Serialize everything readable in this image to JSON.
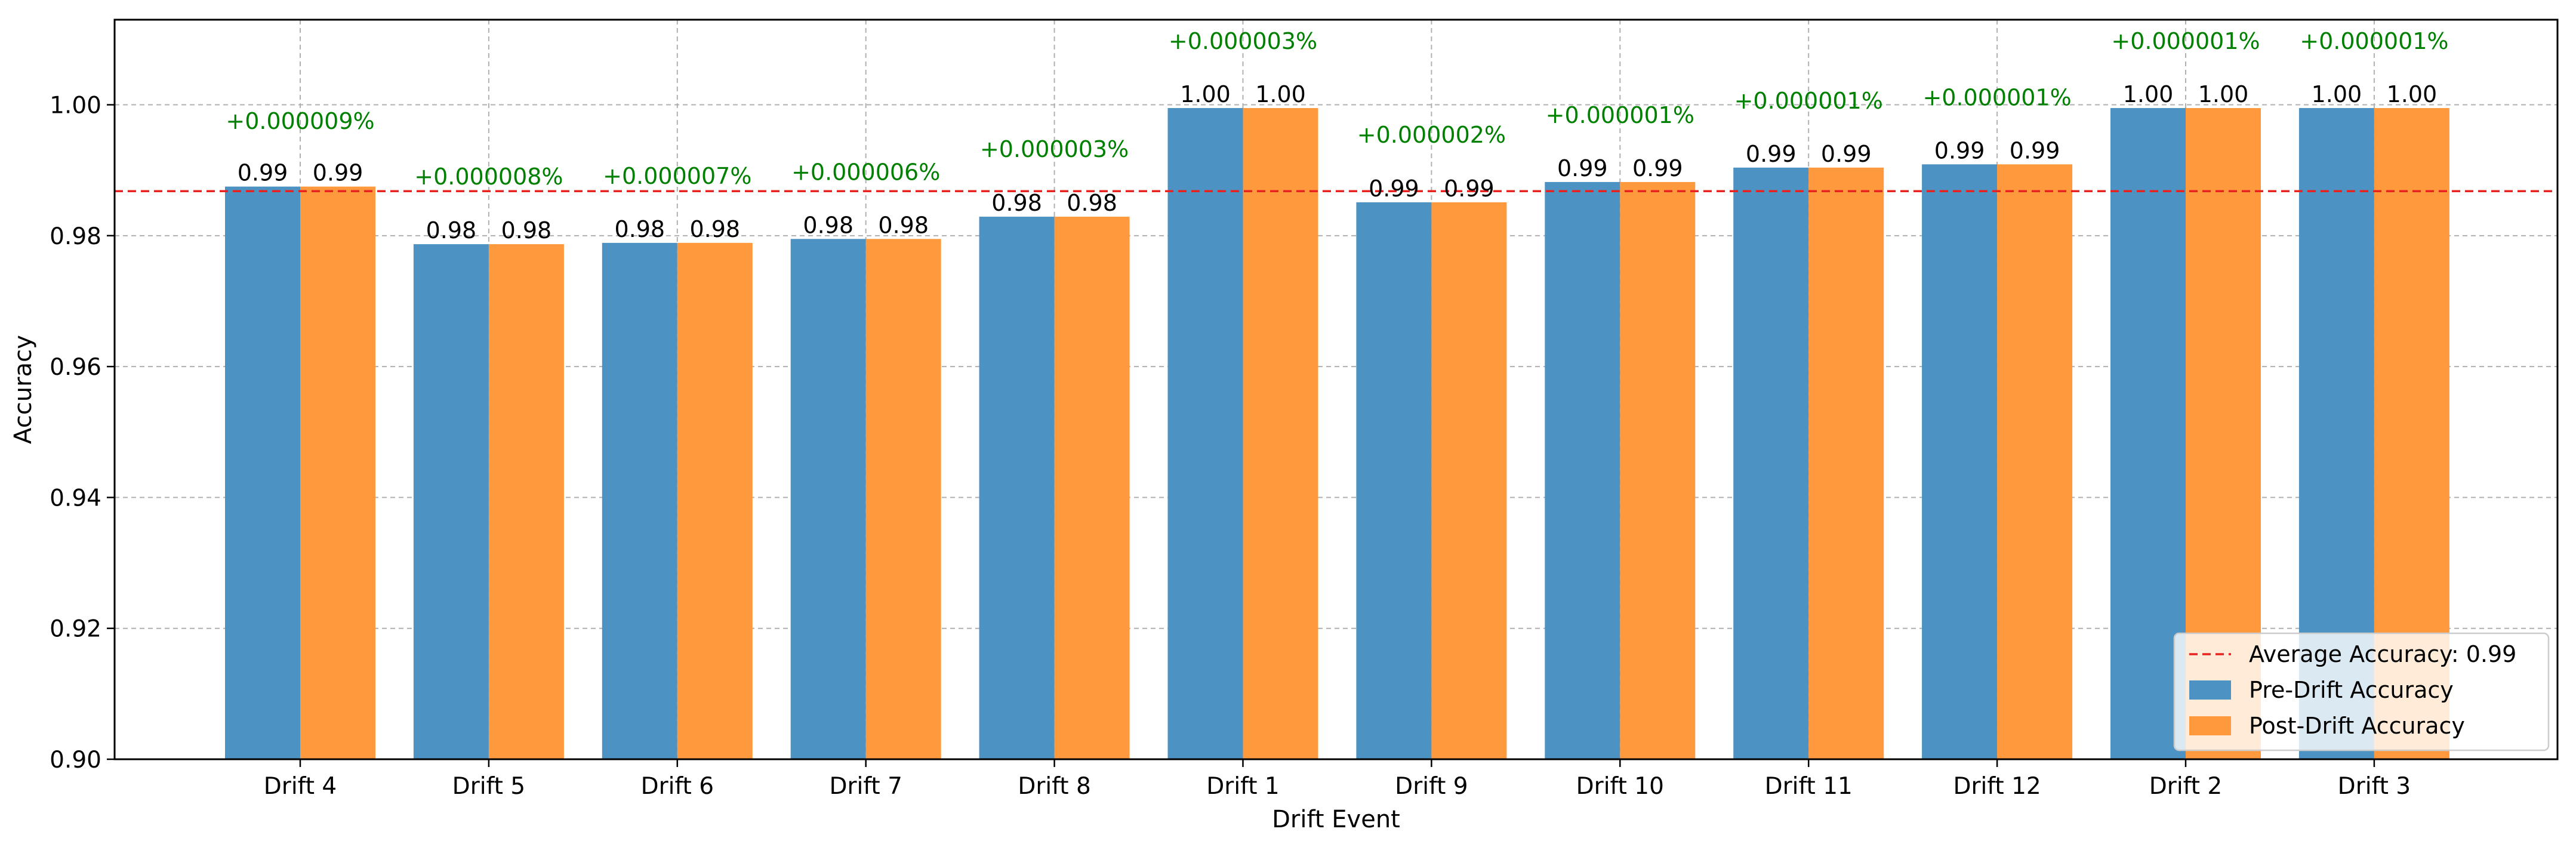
{
  "chart_data": {
    "type": "bar",
    "title": "",
    "xlabel": "Drift Event",
    "ylabel": "Accuracy",
    "ylim": [
      0.9,
      1.013
    ],
    "yticks": [
      0.9,
      0.92,
      0.94,
      0.96,
      0.98,
      1.0
    ],
    "ytick_labels": [
      "0.90",
      "0.92",
      "0.94",
      "0.96",
      "0.98",
      "1.00"
    ],
    "grid": true,
    "categories": [
      "Drift 4",
      "Drift 5",
      "Drift 6",
      "Drift 7",
      "Drift 8",
      "Drift 1",
      "Drift 9",
      "Drift 10",
      "Drift 11",
      "Drift 12",
      "Drift 2",
      "Drift 3"
    ],
    "series": [
      {
        "name": "Pre-Drift Accuracy",
        "color": "#4c92c3",
        "values": [
          0.9875,
          0.9787,
          0.9789,
          0.9795,
          0.9829,
          0.9995,
          0.9851,
          0.9882,
          0.9904,
          0.9909,
          0.9995,
          0.9995
        ],
        "labels": [
          "0.99",
          "0.98",
          "0.98",
          "0.98",
          "0.98",
          "1.00",
          "0.99",
          "0.99",
          "0.99",
          "0.99",
          "1.00",
          "1.00"
        ]
      },
      {
        "name": "Post-Drift Accuracy",
        "color": "#ff993e",
        "values": [
          0.9875,
          0.9787,
          0.9789,
          0.9795,
          0.9829,
          0.9995,
          0.9851,
          0.9882,
          0.9904,
          0.9909,
          0.9995,
          0.9995
        ],
        "labels": [
          "0.99",
          "0.98",
          "0.98",
          "0.98",
          "0.98",
          "1.00",
          "0.99",
          "0.99",
          "0.99",
          "0.99",
          "1.00",
          "1.00"
        ]
      }
    ],
    "annotations": {
      "color": "#008000",
      "texts": [
        "+0.000009%",
        "+0.000008%",
        "+0.000007%",
        "+0.000006%",
        "+0.000003%",
        "+0.000003%",
        "+0.000002%",
        "+0.000001%",
        "+0.000001%",
        "+0.000001%",
        "+0.000001%",
        "+0.000001%"
      ],
      "values": [
        0.9975,
        0.989,
        0.9891,
        0.9897,
        0.9932,
        1.0097,
        0.9954,
        0.9984,
        1.0006,
        1.0011,
        1.0097,
        1.0097
      ]
    },
    "average_line": {
      "value": 0.9868,
      "label": "Average Accuracy: 0.99",
      "color": "#e8221f",
      "style": "dashed"
    },
    "legend": {
      "position": "lower-right",
      "entries": [
        "Average Accuracy: 0.99",
        "Pre-Drift Accuracy",
        "Post-Drift Accuracy"
      ]
    }
  }
}
